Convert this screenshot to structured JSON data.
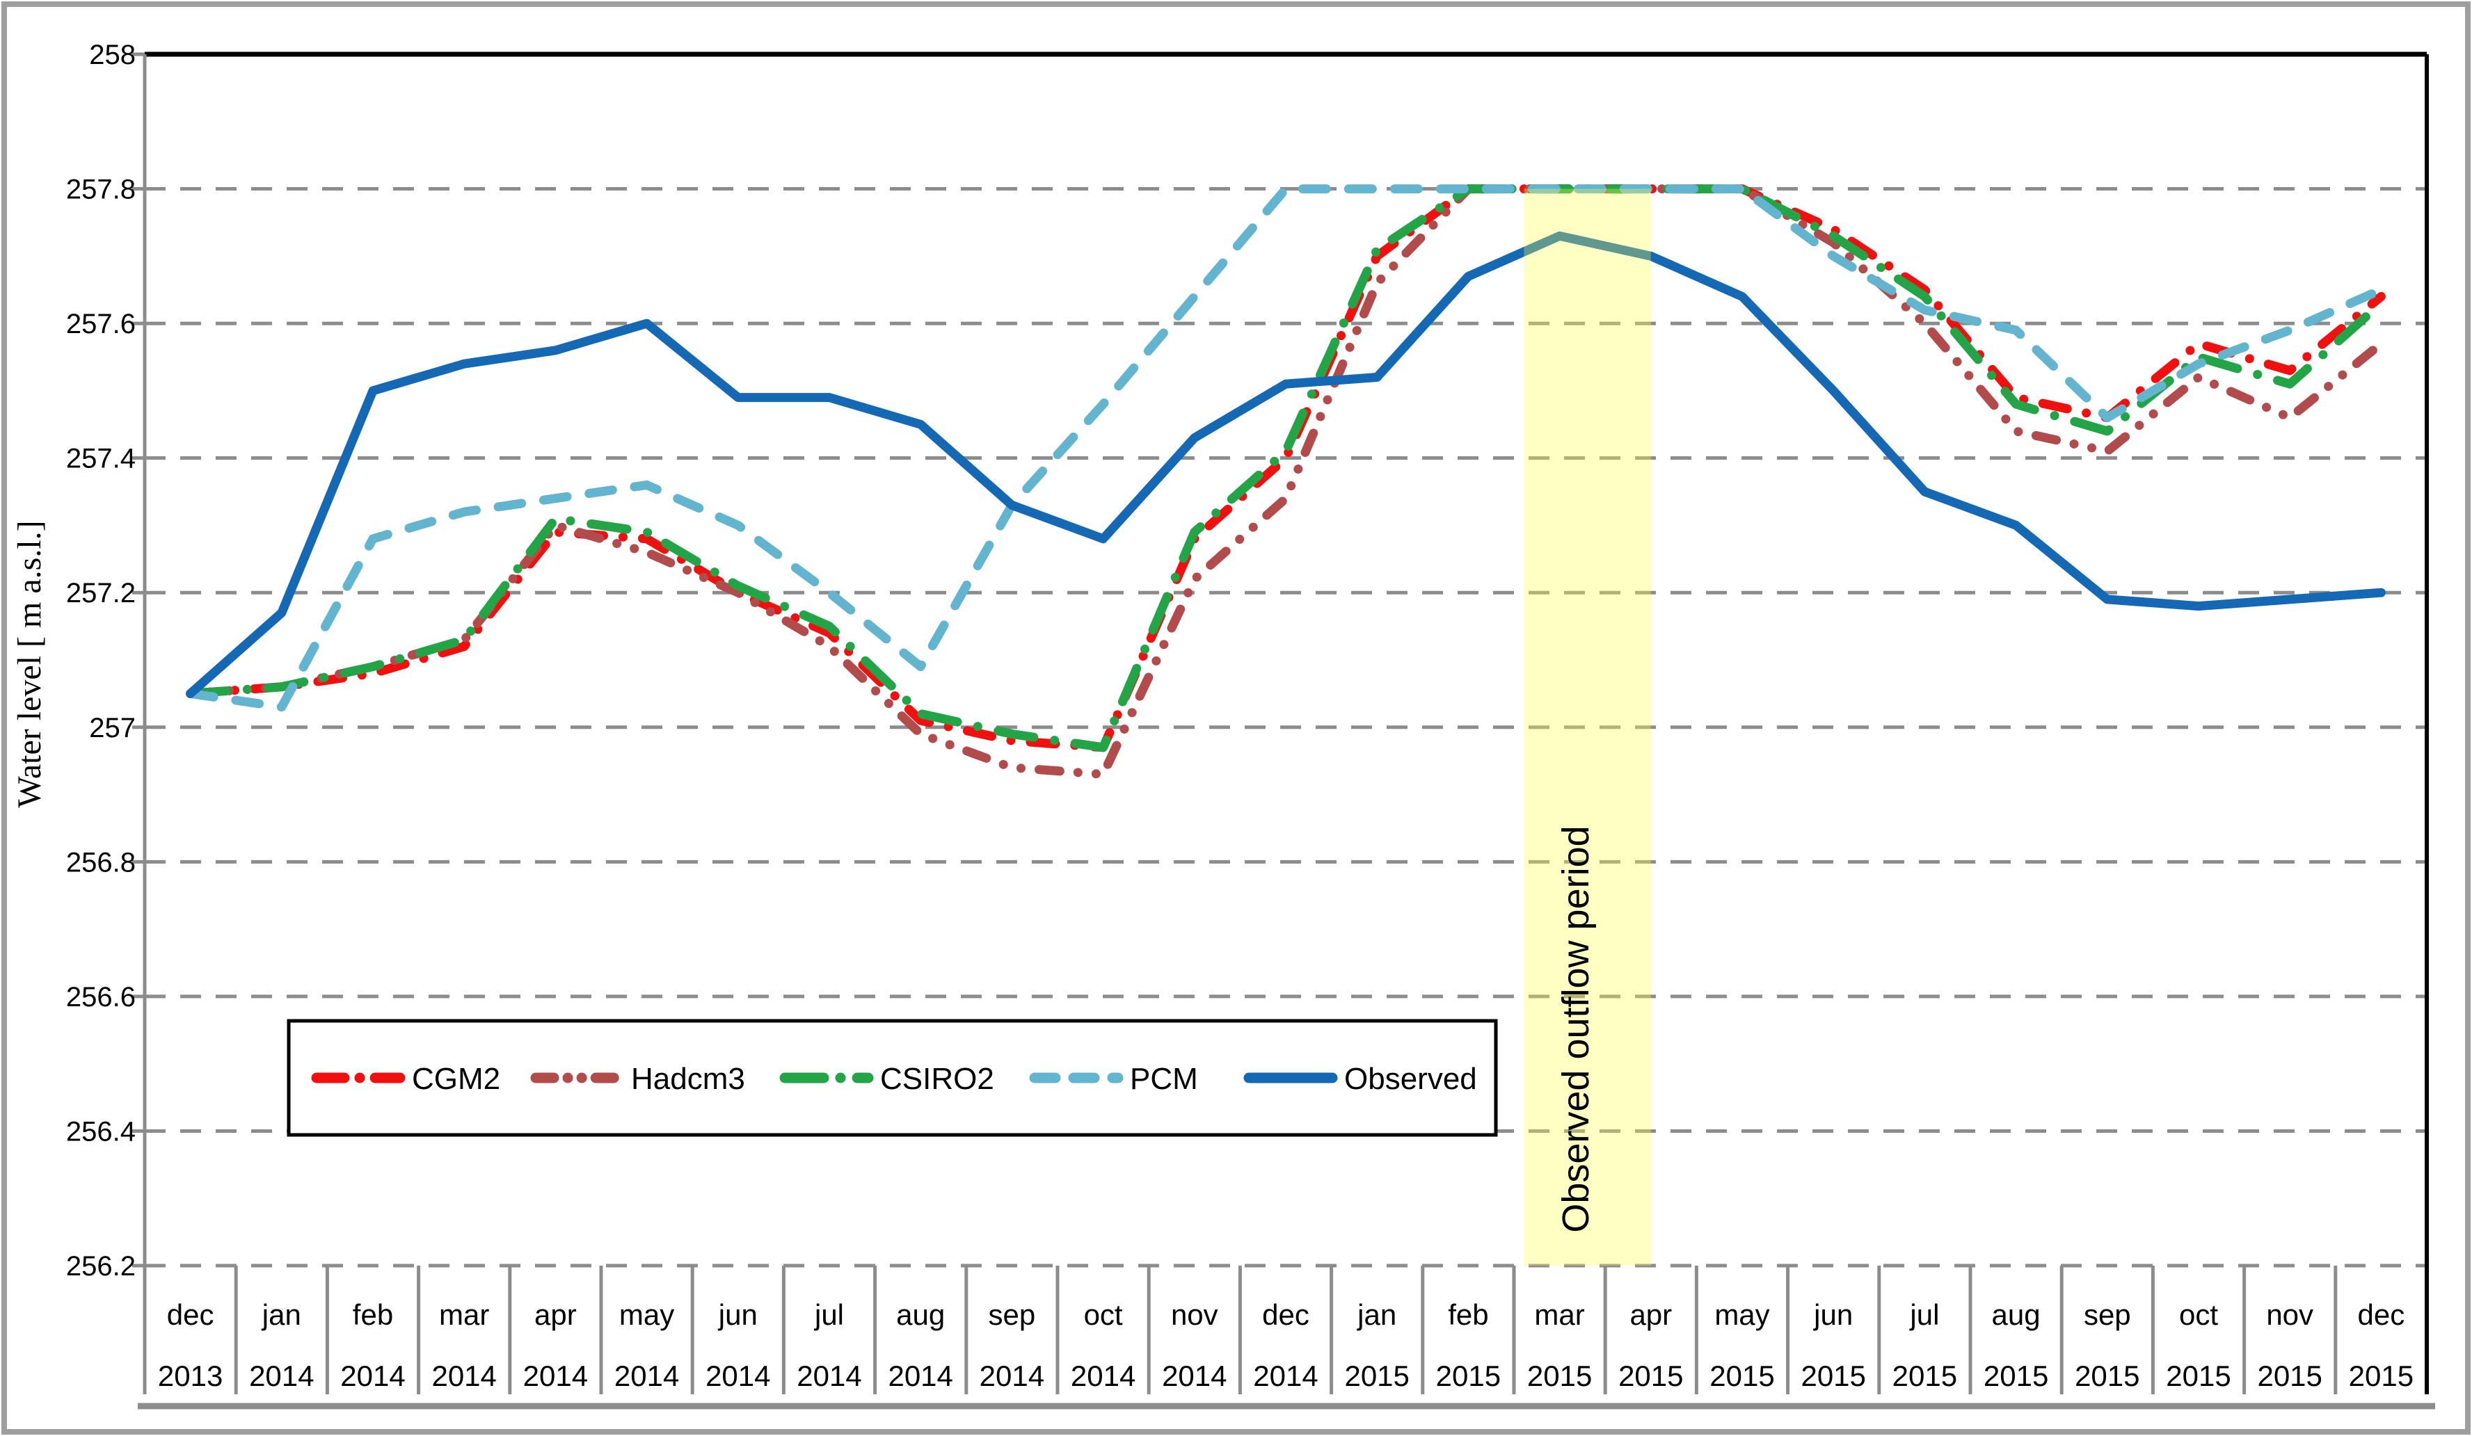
{
  "figure": {
    "border_color": "#9e9e9e",
    "background": "#ffffff"
  },
  "chart_data": {
    "type": "line",
    "title": "",
    "xlabel": "",
    "ylabel": "Water level [ m a.s.l.]",
    "ylim": [
      256.2,
      258
    ],
    "ytick_step": 0.2,
    "ytick_labels": [
      "258",
      "257.8",
      "257.6",
      "257.4",
      "257.2",
      "257",
      "256.8",
      "256.6",
      "256.4",
      "256.2"
    ],
    "grid": "horizontal-dashed-gray",
    "legend_position": "inside-lower-left",
    "x_months": [
      "dec",
      "jan",
      "feb",
      "mar",
      "apr",
      "may",
      "jun",
      "jul",
      "aug",
      "sep",
      "oct",
      "nov",
      "dec",
      "jan",
      "feb",
      "mar",
      "apr",
      "may",
      "jun",
      "jul",
      "aug",
      "sep",
      "oct",
      "nov",
      "dec"
    ],
    "x_years": [
      "2013",
      "2014",
      "2014",
      "2014",
      "2014",
      "2014",
      "2014",
      "2014",
      "2014",
      "2014",
      "2014",
      "2014",
      "2014",
      "2015",
      "2015",
      "2015",
      "2015",
      "2015",
      "2015",
      "2015",
      "2015",
      "2015",
      "2015",
      "2015",
      "2015"
    ],
    "series": [
      {
        "name": "CGM2",
        "color": "#f01010",
        "style": "dash-dot",
        "values": [
          257.05,
          257.06,
          257.08,
          257.12,
          257.29,
          257.28,
          257.2,
          257.14,
          257.01,
          256.98,
          256.97,
          257.28,
          257.4,
          257.7,
          257.8,
          257.8,
          257.8,
          257.8,
          257.74,
          257.65,
          257.49,
          257.46,
          257.57,
          257.53,
          257.64
        ]
      },
      {
        "name": "Hadcm3",
        "color": "#b24c4c",
        "style": "dash-dot-dot",
        "values": [
          257.05,
          257.06,
          257.09,
          257.13,
          257.3,
          257.26,
          257.2,
          257.12,
          256.99,
          256.94,
          256.93,
          257.22,
          257.34,
          257.66,
          257.8,
          257.8,
          257.8,
          257.8,
          257.72,
          257.6,
          257.44,
          257.41,
          257.52,
          257.46,
          257.57
        ]
      },
      {
        "name": "CSIRO2",
        "color": "#22a447",
        "style": "long-dash-dot",
        "values": [
          257.05,
          257.06,
          257.09,
          257.13,
          257.31,
          257.29,
          257.21,
          257.15,
          257.02,
          256.99,
          256.97,
          257.29,
          257.41,
          257.71,
          257.8,
          257.8,
          257.8,
          257.8,
          257.73,
          257.64,
          257.48,
          257.44,
          257.55,
          257.51,
          257.63
        ]
      },
      {
        "name": "PCM",
        "color": "#63b4ce",
        "style": "dashed",
        "values": [
          257.05,
          257.03,
          257.28,
          257.32,
          257.34,
          257.36,
          257.3,
          257.2,
          257.09,
          257.33,
          257.48,
          257.64,
          257.8,
          257.8,
          257.8,
          257.8,
          257.8,
          257.8,
          257.7,
          257.62,
          257.59,
          257.46,
          257.54,
          257.59,
          257.65
        ]
      },
      {
        "name": "Observed",
        "color": "#1568b3",
        "style": "solid",
        "values": [
          257.05,
          257.17,
          257.5,
          257.54,
          257.56,
          257.6,
          257.49,
          257.49,
          257.45,
          257.33,
          257.28,
          257.43,
          257.51,
          257.52,
          257.67,
          257.73,
          257.7,
          257.64,
          257.5,
          257.35,
          257.3,
          257.19,
          257.18,
          257.19,
          257.2
        ]
      }
    ],
    "annotation_band": {
      "label": "Observed outflow period",
      "from_month_index": 14.61,
      "to_month_index": 16.0,
      "top_value": 257.8,
      "fill": "rgba(255,255,70,0.32)",
      "label_color": "#000000"
    },
    "axis_colors": {
      "gridline": "#8c8c8c",
      "top_border": "#000000",
      "right_border": "#000000",
      "left_axis": "#8c8c8c",
      "tick_text": "#000000"
    }
  }
}
